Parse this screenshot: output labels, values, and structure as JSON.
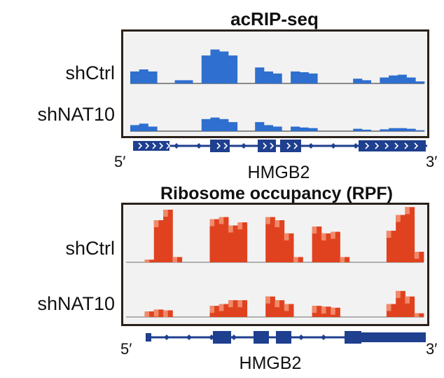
{
  "panels": [
    {
      "title": "acRIP-seq",
      "color": "#2e6fcf",
      "baseline_color": "#8a8a8a",
      "rows": [
        {
          "label": "shCtrl",
          "profile": [
            0.3,
            0.35,
            0.3,
            0,
            0,
            0.08,
            0.08,
            0,
            0.7,
            0.85,
            0.8,
            0.7,
            0,
            0,
            0.4,
            0.3,
            0.25,
            0,
            0.3,
            0.28,
            0.25,
            0,
            0,
            0,
            0,
            0.12,
            0.08,
            0,
            0.15,
            0.2,
            0.22,
            0.15,
            0.05
          ]
        },
        {
          "label": "shNAT10",
          "profile": [
            0.2,
            0.25,
            0.15,
            0,
            0,
            0,
            0,
            0,
            0.4,
            0.45,
            0.4,
            0.3,
            0,
            0,
            0.3,
            0.2,
            0.15,
            0,
            0.15,
            0.12,
            0.1,
            0,
            0,
            0,
            0,
            0.08,
            0.05,
            0,
            0.06,
            0.1,
            0.1,
            0.08,
            0.03
          ]
        }
      ],
      "gene": {
        "name": "HMGB2",
        "five_prime": "5′",
        "three_prime": "3′",
        "color": "#1f3f8f"
      }
    },
    {
      "title": "Ribosome occupancy (RPF)",
      "color": "#e0421f",
      "highlight_color": "#f08a6a",
      "baseline_color": "#b0b0b0",
      "rows": [
        {
          "label": "shCtrl",
          "profile": [
            0,
            0,
            0.05,
            0.8,
            1.0,
            0.1,
            0,
            0,
            0,
            0.82,
            0.86,
            0.7,
            0.76,
            0,
            0,
            0.86,
            0.8,
            0.55,
            0.1,
            0,
            0.68,
            0.55,
            0.58,
            0.1,
            0,
            0,
            0,
            0,
            0.6,
            0.9,
            1.05,
            0.2
          ]
        },
        {
          "label": "shNAT10",
          "profile": [
            0,
            0,
            0.15,
            0.2,
            0.18,
            0,
            0,
            0,
            0,
            0.3,
            0.35,
            0.45,
            0.45,
            0,
            0,
            0.55,
            0.45,
            0.35,
            0,
            0,
            0.3,
            0.28,
            0.25,
            0,
            0,
            0,
            0,
            0,
            0.35,
            0.7,
            0.55,
            0.1
          ]
        }
      ],
      "gene": {
        "name": "HMGB2",
        "five_prime": "5′",
        "three_prime": "3′",
        "color": "#1f3f8f"
      }
    }
  ]
}
